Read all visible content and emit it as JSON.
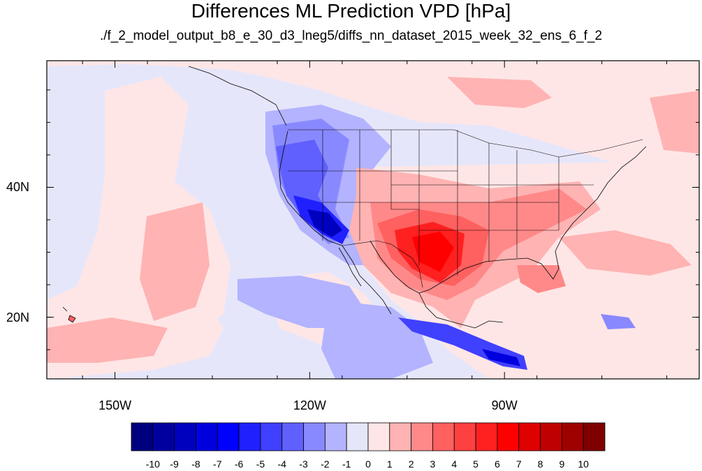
{
  "title": "Differences ML Prediction VPD [hPa]",
  "subtitle": "./f_2_model_output_b8_e_30_d3_lneg5/diffs_nn_dataset_2015_week_32_ens_6_f_2",
  "map": {
    "projection": "cylindrical equidistant",
    "lon_range": [
      -160.5,
      -60
    ],
    "lat_range": [
      10.5,
      59.5
    ],
    "lon_ticks": [
      {
        "value": -150,
        "label": "150W"
      },
      {
        "value": -120,
        "label": "120W"
      },
      {
        "value": -90,
        "label": "90W"
      }
    ],
    "lat_ticks": [
      {
        "value": 40,
        "label": "40N"
      },
      {
        "value": 20,
        "label": "20N"
      }
    ],
    "variable": "VPD difference",
    "units": "hPa"
  },
  "colorbar": {
    "labels": [
      "-10",
      "-9",
      "-8",
      "-7",
      "-6",
      "-5",
      "-4",
      "-3",
      "-2",
      "-1",
      "0",
      "1",
      "2",
      "3",
      "4",
      "5",
      "6",
      "7",
      "8",
      "9",
      "10"
    ],
    "colors": [
      "#00007f",
      "#00009f",
      "#0000bf",
      "#0000df",
      "#0000ff",
      "#2020ff",
      "#4040ff",
      "#6060ff",
      "#8989ff",
      "#b3b3ff",
      "#e6e6fa",
      "#ffe6e6",
      "#ffb3b3",
      "#ff8989",
      "#ff6060",
      "#ff4040",
      "#ff2020",
      "#ff0000",
      "#df0000",
      "#bf0000",
      "#9f0000",
      "#7f0000"
    ]
  }
}
